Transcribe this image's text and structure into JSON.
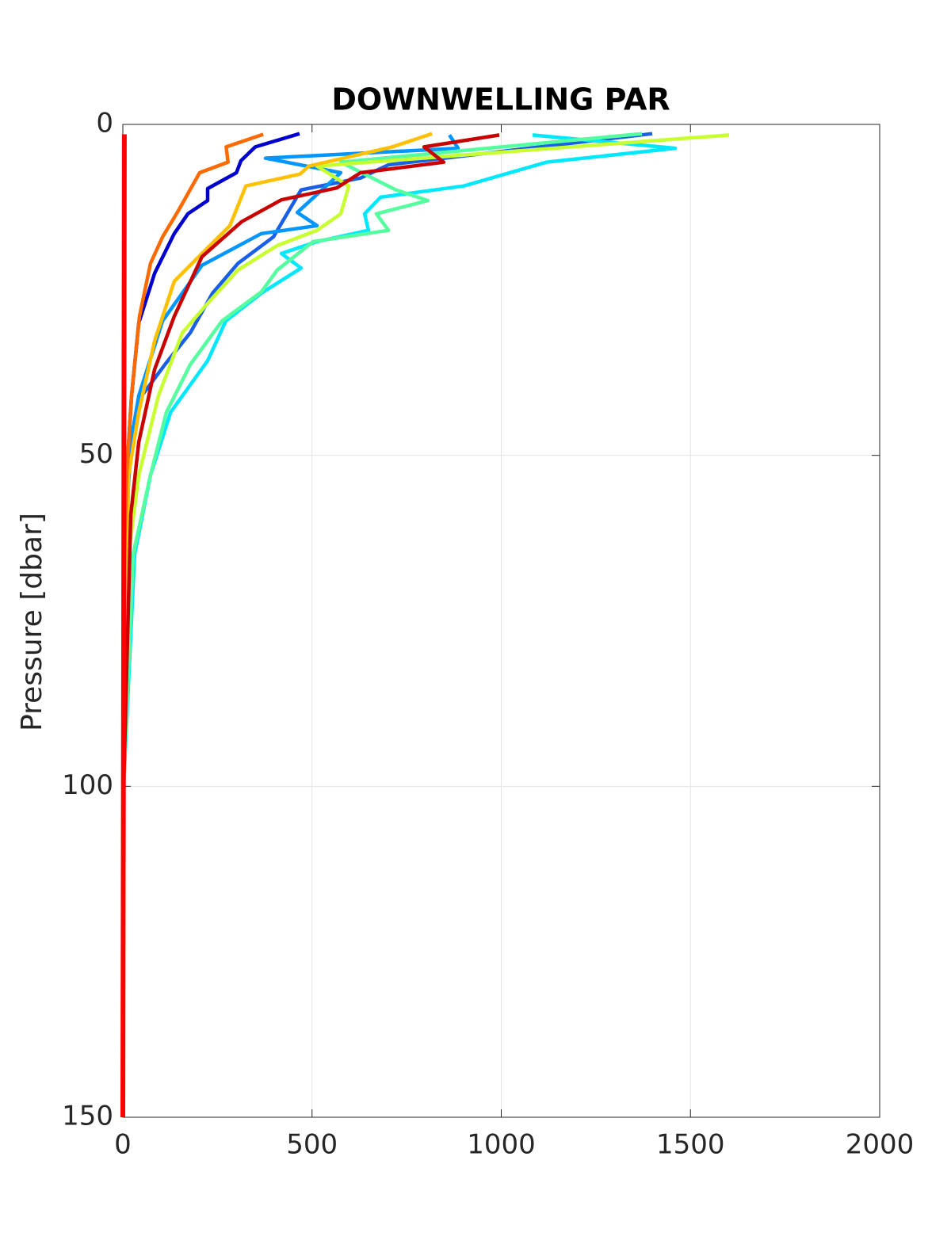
{
  "chart_data": {
    "type": "line",
    "title": "DOWNWELLING PAR",
    "y_label": "Pressure [dbar]",
    "xlim": [
      0,
      2000
    ],
    "xticks": [
      0,
      500,
      1000,
      1500,
      2000
    ],
    "ylim": [
      0,
      150
    ],
    "yticks": [
      0,
      50,
      100,
      150
    ],
    "y_reversed": true,
    "grid": true,
    "series": [
      {
        "color": "#0000cd",
        "x": [
          467,
          350,
          312,
          300,
          224,
          224,
          172,
          136,
          84,
          42,
          23,
          10,
          2
        ],
        "y": [
          1.4,
          3.4,
          5.5,
          7.3,
          9.7,
          11.5,
          13.5,
          16.5,
          22.5,
          30,
          41,
          53,
          100
        ]
      },
      {
        "color": "#1a5fe8",
        "x": [
          1399,
          702,
          628,
          471,
          398,
          304,
          237,
          178,
          115,
          42,
          20,
          8,
          2
        ],
        "y": [
          1.4,
          6.1,
          8.1,
          9.9,
          17,
          21,
          25.5,
          31.5,
          36,
          41.6,
          50,
          60,
          100
        ]
      },
      {
        "color": "#0096ff",
        "x": [
          863,
          886,
          377,
          576,
          461,
          513,
          366,
          209,
          105,
          42,
          21,
          8,
          2
        ],
        "y": [
          1.6,
          3.6,
          5.1,
          7.3,
          13.3,
          15.3,
          16.5,
          21.3,
          29.7,
          41,
          48,
          60,
          100
        ]
      },
      {
        "color": "#00e8ff",
        "x": [
          1083,
          1460,
          1120,
          901,
          681,
          639,
          649,
          513,
          419,
          471,
          366,
          272,
          224,
          126,
          73,
          31,
          2
        ],
        "y": [
          1.6,
          3.6,
          5.7,
          9.3,
          11,
          13.5,
          16,
          17.7,
          19.5,
          21.7,
          25.5,
          29.7,
          35.7,
          43.5,
          53,
          65,
          100
        ]
      },
      {
        "color": "#55ff9f",
        "x": [
          1372,
          576,
          722,
          806,
          670,
          702,
          503,
          408,
          366,
          262,
          178,
          115,
          73,
          27,
          2
        ],
        "y": [
          1.4,
          5.7,
          9.9,
          11.5,
          13.5,
          16,
          17.7,
          22,
          25.3,
          29.7,
          36.3,
          43.5,
          53,
          65,
          100
        ]
      },
      {
        "color": "#c8ff30",
        "x": [
          1602,
          513,
          597,
          576,
          513,
          408,
          304,
          220,
          157,
          94,
          42,
          15,
          2
        ],
        "y": [
          1.6,
          6.3,
          9.3,
          13.5,
          16,
          18.3,
          22,
          27.3,
          31.5,
          41,
          53,
          65,
          100
        ]
      },
      {
        "color": "#ffc000",
        "x": [
          817,
          712,
          492,
          468,
          325,
          283,
          209,
          136,
          84,
          42,
          15,
          2
        ],
        "y": [
          1.4,
          3.4,
          6.3,
          7.5,
          9.3,
          15.3,
          19.5,
          23.7,
          32.7,
          43.5,
          53,
          100
        ]
      },
      {
        "color": "#ff6a00",
        "x": [
          371,
          273,
          278,
          203,
          147,
          105,
          73,
          44,
          23,
          10,
          4,
          1
        ],
        "y": [
          1.5,
          3.4,
          5.7,
          7.3,
          13,
          17,
          21,
          29,
          41,
          53,
          65,
          100
        ]
      },
      {
        "color": "#c80000",
        "x": [
          995,
          796,
          848,
          628,
          565,
          419,
          314,
          209,
          136,
          84,
          42,
          21,
          2
        ],
        "y": [
          1.6,
          3.4,
          5.7,
          7.3,
          9.6,
          11.4,
          14.7,
          20,
          29,
          37,
          48,
          59,
          100
        ]
      },
      {
        "color": "#ff0000",
        "x": [
          4,
          2,
          0
        ],
        "y": [
          1.5,
          80,
          150
        ]
      }
    ]
  }
}
